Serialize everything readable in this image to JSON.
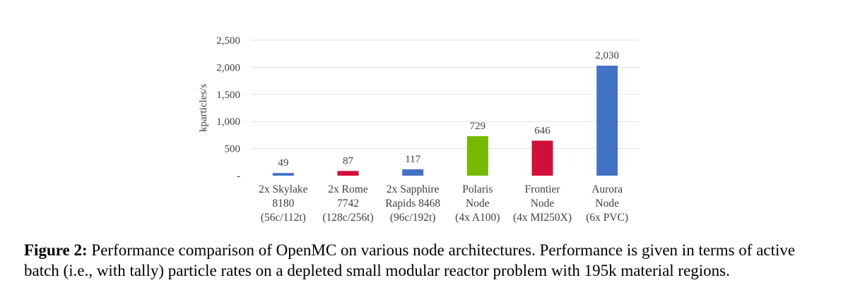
{
  "chart_data": {
    "type": "bar",
    "title": "",
    "xlabel": "",
    "ylabel": "kparticles/s",
    "ylim": [
      0,
      2500
    ],
    "yticks": [
      0,
      500,
      1000,
      1500,
      2000,
      2500
    ],
    "ytick_labels": [
      "-",
      "500",
      "1,000",
      "1,500",
      "2,000",
      "2,500"
    ],
    "grid": true,
    "categories": [
      {
        "lines": [
          "2x Skylake",
          "8180",
          "(56c/112t)"
        ]
      },
      {
        "lines": [
          "2x Rome",
          "7742",
          "(128c/256t)"
        ]
      },
      {
        "lines": [
          "2x Sapphire",
          "Rapids 8468",
          "(96c/192t)"
        ]
      },
      {
        "lines": [
          "Polaris",
          "Node",
          "(4x A100)"
        ]
      },
      {
        "lines": [
          "Frontier",
          "Node",
          "(4x MI250X)"
        ]
      },
      {
        "lines": [
          "Aurora",
          "Node",
          "(6x PVC)"
        ]
      }
    ],
    "values": [
      49,
      87,
      117,
      729,
      646,
      2030
    ],
    "value_labels": [
      "49",
      "87",
      "117",
      "729",
      "646",
      "2,030"
    ],
    "colors": [
      "#4472c4",
      "#d0103a",
      "#4472c4",
      "#77b900",
      "#d0103a",
      "#4472c4"
    ]
  },
  "caption": {
    "label": "Figure 2:",
    "text": "Performance comparison of OpenMC on various node architectures. Performance is given in terms of active batch (i.e., with tally) particle rates on a depleted small modular reactor problem with 195k material regions."
  }
}
